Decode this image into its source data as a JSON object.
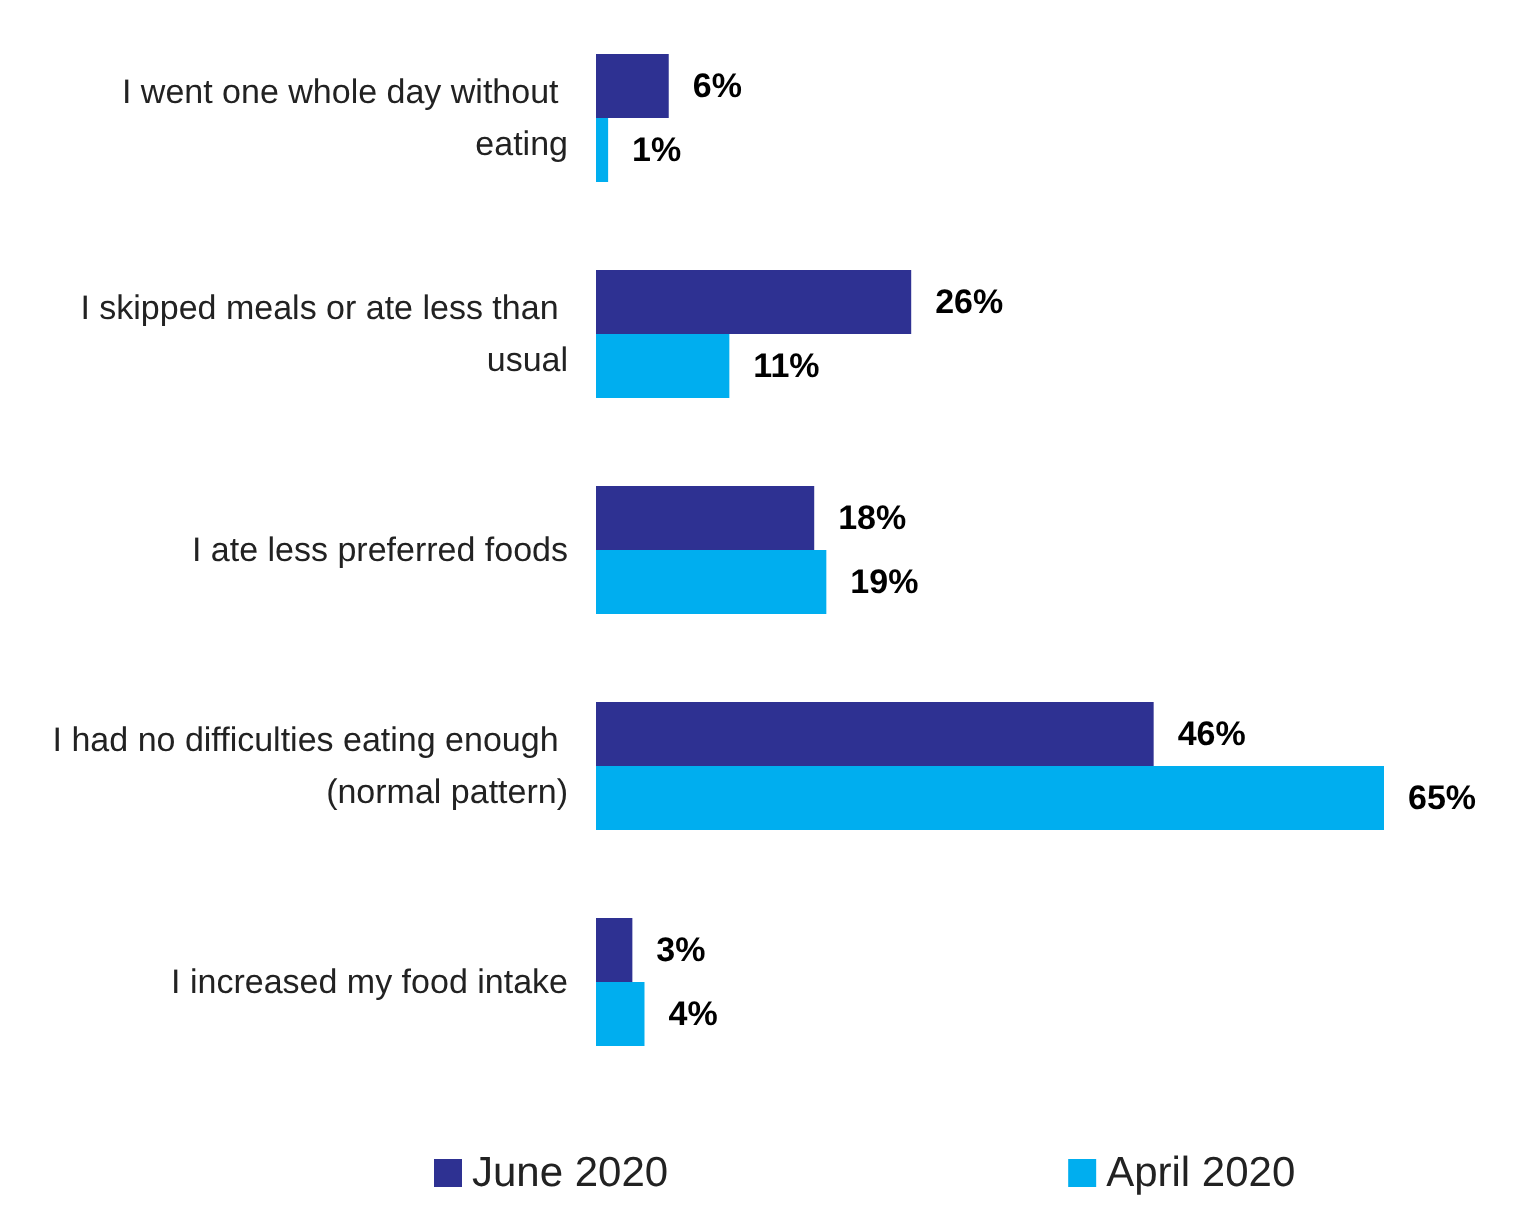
{
  "chart_data": {
    "type": "bar",
    "orientation": "horizontal",
    "categories": [
      "I went one whole day without eating",
      "I skipped meals or ate less than usual",
      "I ate less preferred foods",
      "I had no difficulties eating enough (normal pattern)",
      "I increased my food intake"
    ],
    "series": [
      {
        "name": "June 2020",
        "color": "#2e3192",
        "values": [
          6,
          26,
          18,
          46,
          3
        ],
        "value_labels": [
          "6%",
          "26%",
          "18%",
          "46%",
          "3%"
        ]
      },
      {
        "name": "April 2020",
        "color": "#00aeef",
        "values": [
          1,
          11,
          19,
          65,
          4
        ],
        "value_labels": [
          "1%",
          "11%",
          "19%",
          "65%",
          "4%"
        ]
      }
    ],
    "legend": "bottom"
  }
}
